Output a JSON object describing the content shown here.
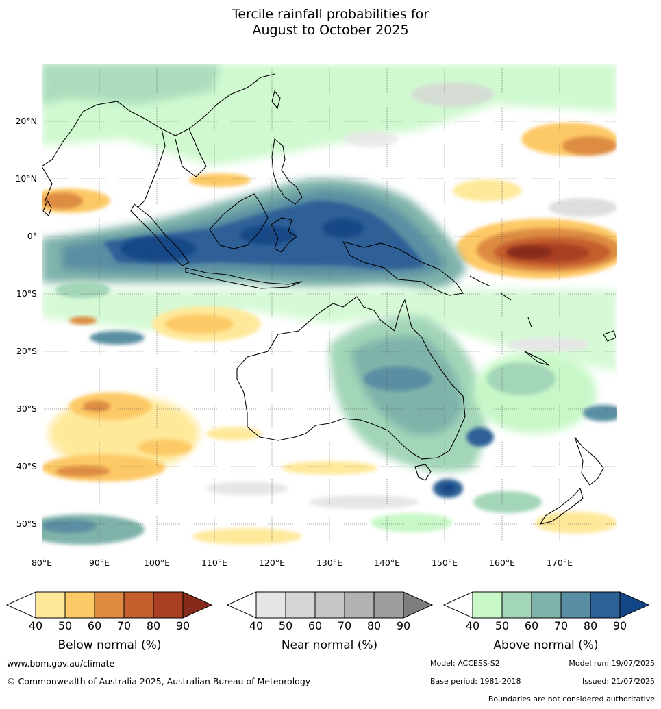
{
  "title": {
    "line1": "Tercile rainfall probabilities for",
    "line2": "August to October 2025"
  },
  "lat_labels": [
    "20°N",
    "10°N",
    "0°",
    "10°S",
    "20°S",
    "30°S",
    "40°S",
    "50°S"
  ],
  "lon_labels": [
    "80°E",
    "90°E",
    "100°E",
    "110°E",
    "120°E",
    "130°E",
    "140°E",
    "150°E",
    "160°E",
    "170°E"
  ],
  "colorbars": [
    {
      "name": "below",
      "title": "Below normal (%)",
      "ticks": [
        "40",
        "50",
        "60",
        "70",
        "80",
        "90"
      ],
      "colors": [
        "#ffffff",
        "#fee99b",
        "#fdc966",
        "#dd8c42",
        "#c55f2e",
        "#a83f22",
        "#862b1b"
      ]
    },
    {
      "name": "near",
      "title": "Near normal (%)",
      "ticks": [
        "40",
        "50",
        "60",
        "70",
        "80",
        "90"
      ],
      "colors": [
        "#ffffff",
        "#e6e6e6",
        "#d6d6d6",
        "#c6c6c6",
        "#b2b2b2",
        "#9e9e9e",
        "#7d7d7d"
      ]
    },
    {
      "name": "above",
      "title": "Above normal (%)",
      "ticks": [
        "40",
        "50",
        "60",
        "70",
        "80",
        "90"
      ],
      "colors": [
        "#ffffff",
        "#c8f8c8",
        "#a3d6b8",
        "#7fb3aa",
        "#5a8fa3",
        "#2d6097",
        "#134686"
      ]
    }
  ],
  "footer": {
    "website": "www.bom.gov.au/climate",
    "copyright": "© Commonwealth of Australia 2025, Australian Bureau of Meteorology",
    "model": "Model: ACCESS-S2",
    "model_run": "Model run: 19/07/2025",
    "base_period": "Base period: 1981-2018",
    "issued": "Issued: 21/07/2025",
    "disclaimer": "Boundaries are not considered authoritative"
  }
}
